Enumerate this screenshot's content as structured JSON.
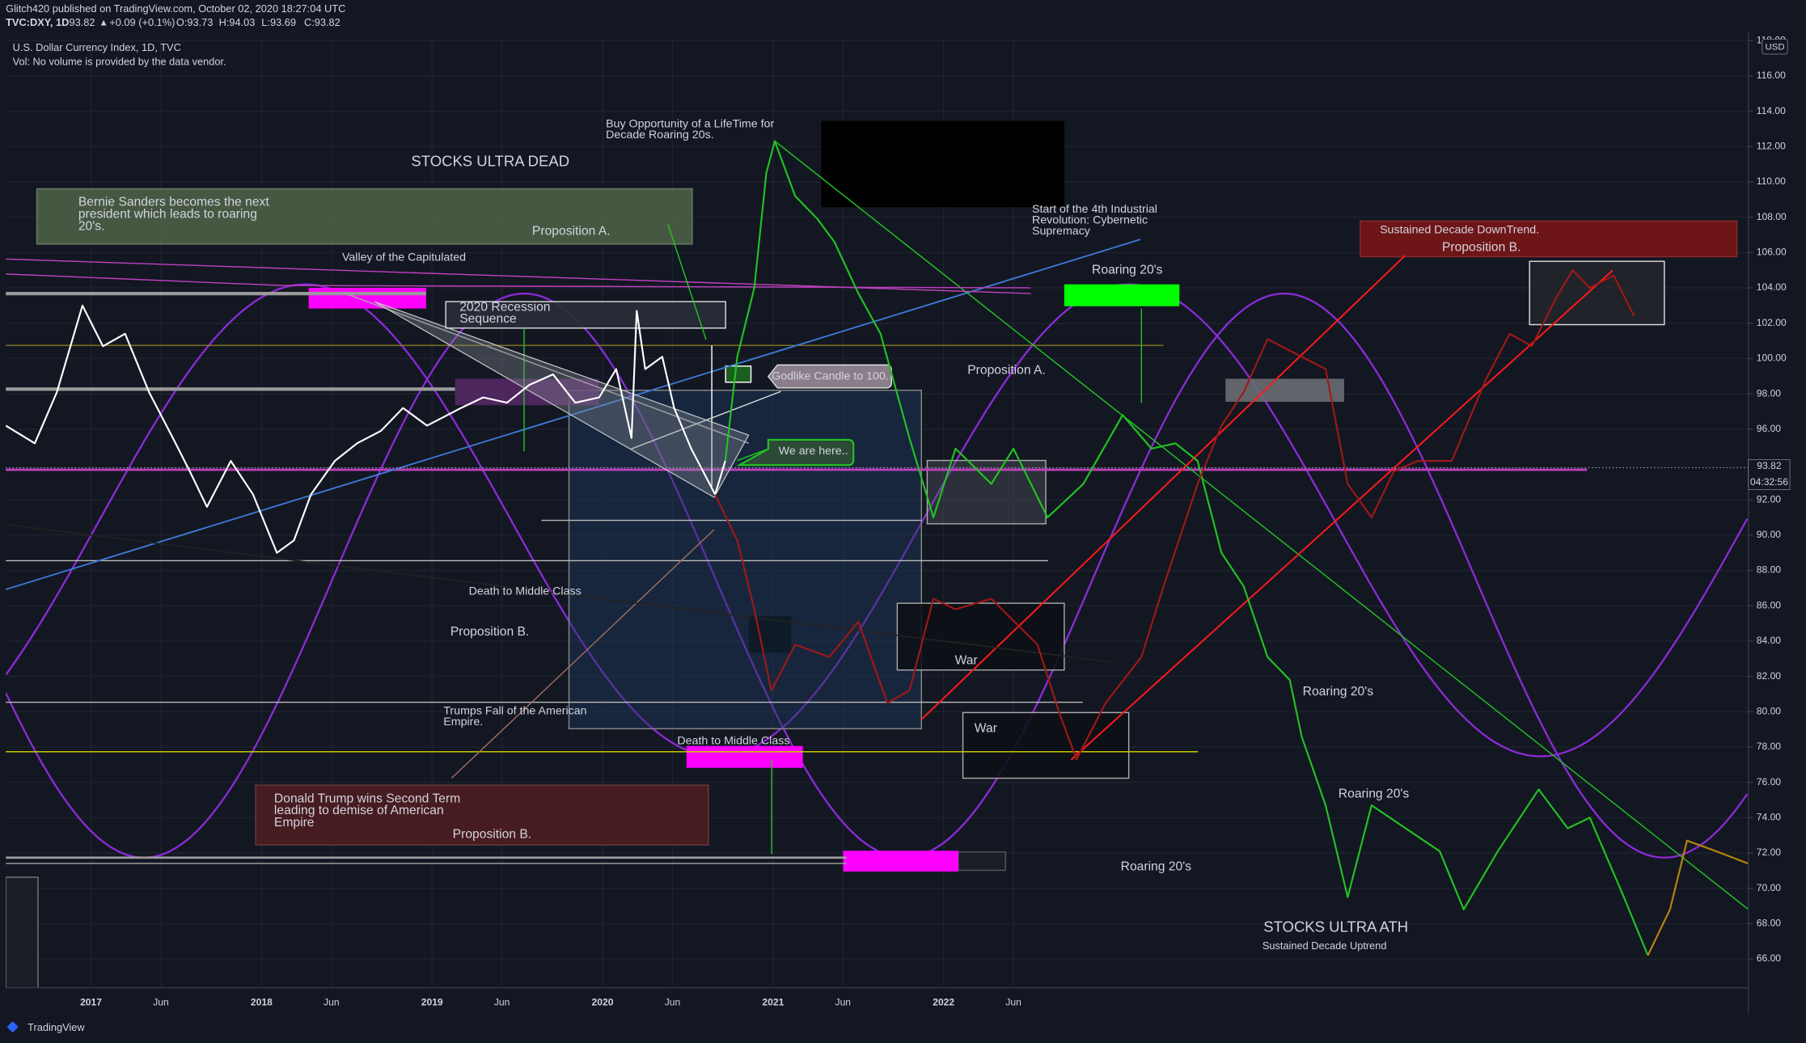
{
  "header": {
    "publisher": "Glitch420 published on TradingView.com, October 02, 2020 18:27:04 UTC",
    "symbol": "TVC:DXY, 1D",
    "price": "93.82",
    "change": "+0.09 (+0.1%)",
    "ohlc": [
      "O:93.73",
      "H:94.03",
      "L:93.69",
      "C:93.82"
    ]
  },
  "footer": "TradingView",
  "annotations": [
    [
      "STOCKS ULTRA DEAD"
    ],
    [
      "Bernie Sanders becomes the next",
      "president which leads to roaring",
      "20's."
    ],
    [
      "Proposition A."
    ],
    [
      "Valley of the Capitulated"
    ],
    [
      "2020 Recession",
      "Sequence"
    ],
    [
      "Buy Opportunity of a LifeTime for",
      "Decade Roaring 20s."
    ],
    [
      "Start of the 4th Industrial",
      "Revolution: Cybernetic",
      "Supremacy"
    ],
    [
      "Roaring 20's"
    ],
    [
      "Sustained Decade DownTrend."
    ],
    [
      "Proposition B."
    ],
    [
      "Godlike Candle to 100."
    ],
    [
      "Proposition A."
    ],
    [
      "We are here.."
    ],
    [
      "Death to Middle Class"
    ],
    [
      "Proposition B."
    ],
    [
      "War"
    ],
    [
      "Trumps Fall of the American",
      "Empire."
    ],
    [
      "Death to Middle Class"
    ],
    [
      "War"
    ],
    [
      "Roaring 20's"
    ],
    [
      "Donald Trump wins Second Term",
      "leading to demise of American",
      "Empire"
    ],
    [
      "Proposition B."
    ],
    [
      "Roaring 20's"
    ],
    [
      "Roaring 20's"
    ],
    [
      "STOCKS ULTRA ATH"
    ],
    [
      "Sustained Decade Uptrend"
    ]
  ],
  "chart_data": {
    "type": "line",
    "title": "U.S. Dollar Currency Index, 1D, TVC",
    "subtitle": "Vol: No volume is provided by the data vendor.",
    "currency": "USD",
    "last_price": 93.82,
    "countdown": "04:32:56",
    "grid": true,
    "xlim": [
      2016.5,
      2026.72
    ],
    "ylim": [
      64.37,
      118.15
    ],
    "xticks": [
      2017,
      {
        "value": 2017.41,
        "label": "Jun"
      },
      2018,
      {
        "value": 2018.41,
        "label": "Jun"
      },
      2019,
      {
        "value": 2019.41,
        "label": "Jun"
      },
      2020,
      {
        "value": 2020.41,
        "label": "Jun"
      },
      2021,
      {
        "value": 2021.41,
        "label": "Jun"
      },
      2022,
      {
        "value": 2022.41,
        "label": "Jun"
      }
    ],
    "yticks": [
      {
        "value": 66,
        "label": "66.00"
      },
      {
        "value": 68,
        "label": "68.00"
      },
      {
        "value": 70,
        "label": "70.00"
      },
      {
        "value": 72,
        "label": "72.00"
      },
      {
        "value": 74,
        "label": "74.00"
      },
      {
        "value": 76,
        "label": "76.00"
      },
      {
        "value": 78,
        "label": "78.00"
      },
      {
        "value": 80,
        "label": "80.00"
      },
      {
        "value": 82,
        "label": "82.00"
      },
      {
        "value": 84,
        "label": "84.00"
      },
      {
        "value": 86,
        "label": "86.00"
      },
      {
        "value": 88,
        "label": "88.00"
      },
      {
        "value": 90,
        "label": "90.00"
      },
      {
        "value": 92,
        "label": "92.00"
      },
      {
        "value": 96,
        "label": "96.00"
      },
      {
        "value": 98,
        "label": "98.00"
      },
      {
        "value": 100,
        "label": "100.00"
      },
      {
        "value": 102,
        "label": "102.00"
      },
      {
        "value": 104,
        "label": "104.00"
      },
      {
        "value": 106,
        "label": "106.00"
      },
      {
        "value": 108,
        "label": "108.00"
      },
      {
        "value": 110,
        "label": "110.00"
      },
      {
        "value": 112,
        "label": "112.00"
      },
      {
        "value": 114,
        "label": "114.00"
      },
      {
        "value": 116,
        "label": "116.00"
      },
      {
        "value": 118,
        "label": "118.00"
      }
    ],
    "series": [
      {
        "color": "#ffffff",
        "x": [
          2016.5,
          2016.67,
          2016.8,
          2016.95,
          2017.07,
          2017.2,
          2017.34,
          2017.48,
          2017.58,
          2017.68,
          2017.82,
          2017.95,
          2018.09,
          2018.19,
          2018.29,
          2018.43,
          2018.56,
          2018.7,
          2018.83,
          2018.97,
          2019.17,
          2019.3,
          2019.44,
          2019.57,
          2019.71,
          2019.84,
          2019.98,
          2020.08,
          2020.17,
          2020.2,
          2020.25,
          2020.35,
          2020.42,
          2020.52,
          2020.66,
          2020.72
        ],
        "values": [
          96.2,
          95.2,
          98.1,
          103.0,
          100.7,
          101.4,
          98.1,
          95.5,
          93.6,
          91.6,
          94.2,
          92.3,
          89.0,
          89.7,
          92.3,
          94.2,
          95.2,
          95.9,
          97.2,
          96.2,
          97.2,
          97.8,
          97.5,
          98.5,
          99.1,
          97.5,
          97.8,
          99.4,
          95.5,
          102.7,
          99.4,
          100.1,
          97.2,
          94.9,
          92.3,
          94.2
        ]
      },
      {
        "color": "#22c322",
        "x": [
          2020.72,
          2020.79,
          2020.89,
          2020.96,
          2021.01,
          2021.13,
          2021.26,
          2021.36,
          2021.5,
          2021.63,
          2021.8,
          2021.94,
          2022.07,
          2022.28,
          2022.41,
          2022.61,
          2022.82,
          2023.05,
          2023.22,
          2023.36,
          2023.49,
          2023.63,
          2023.76,
          2023.9,
          2024.03,
          2024.1,
          2024.24,
          2024.37,
          2024.51,
          2024.71,
          2024.91,
          2025.05,
          2025.25,
          2025.49,
          2025.66,
          2025.79,
          2025.99,
          2026.13
        ],
        "values": [
          94.2,
          100.1,
          104.0,
          110.5,
          112.3,
          109.2,
          107.9,
          106.6,
          103.7,
          101.4,
          95.5,
          91.0,
          94.9,
          92.9,
          94.9,
          91.0,
          92.9,
          96.8,
          94.9,
          95.2,
          94.2,
          89.0,
          87.1,
          83.1,
          81.8,
          78.6,
          74.7,
          69.5,
          74.7,
          73.4,
          72.1,
          68.8,
          72.1,
          75.6,
          73.4,
          74.0,
          69.5,
          66.2
        ]
      },
      {
        "color": "#b8860b",
        "x": [
          2026.13,
          2026.26,
          2026.36,
          2026.53,
          2026.72
        ],
        "values": [
          66.2,
          68.8,
          72.7,
          72.1,
          71.4
        ]
      },
      {
        "color": "#a01818",
        "x": [
          2020.66,
          2020.79,
          2020.89,
          2020.99,
          2021.13,
          2021.33,
          2021.5,
          2021.67,
          2021.8,
          2021.94,
          2022.07,
          2022.28,
          2022.55,
          2022.68,
          2022.78,
          2022.95,
          2023.16,
          2023.29,
          2023.49,
          2023.63,
          2023.76,
          2023.9,
          2024.1,
          2024.24,
          2024.37,
          2024.51,
          2024.64,
          2024.78,
          2024.98,
          2025.18,
          2025.32,
          2025.45,
          2025.59,
          2025.69,
          2025.79,
          2025.93,
          2026.05
        ],
        "values": [
          92.3,
          89.7,
          85.8,
          81.2,
          83.8,
          83.1,
          85.1,
          80.5,
          81.2,
          86.4,
          85.8,
          86.4,
          83.8,
          79.9,
          77.3,
          80.5,
          83.1,
          87.1,
          92.9,
          96.2,
          98.1,
          101.1,
          100.1,
          99.4,
          92.9,
          91.0,
          93.6,
          94.2,
          94.2,
          98.8,
          101.4,
          100.7,
          103.4,
          105.0,
          104.0,
          104.7,
          102.4
        ]
      }
    ]
  }
}
